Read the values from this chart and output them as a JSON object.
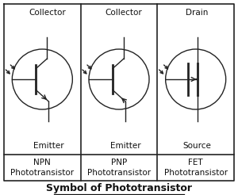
{
  "title": "Symbol of Phototransistor",
  "labels": {
    "npn": {
      "top": "Collector",
      "bottom": "Emitter",
      "name": "NPN\nPhototransistor"
    },
    "pnp": {
      "top": "Collector",
      "bottom": "Emitter",
      "name": "PNP\nPhototransistor"
    },
    "fet": {
      "top": "Drain",
      "bottom": "Source",
      "name": "FET\nPhototransistor"
    }
  },
  "bg_color": "#ffffff",
  "line_color": "#222222",
  "text_color": "#111111",
  "grid_line_color": "#222222",
  "figsize": [
    3.0,
    2.46
  ],
  "dpi": 100
}
